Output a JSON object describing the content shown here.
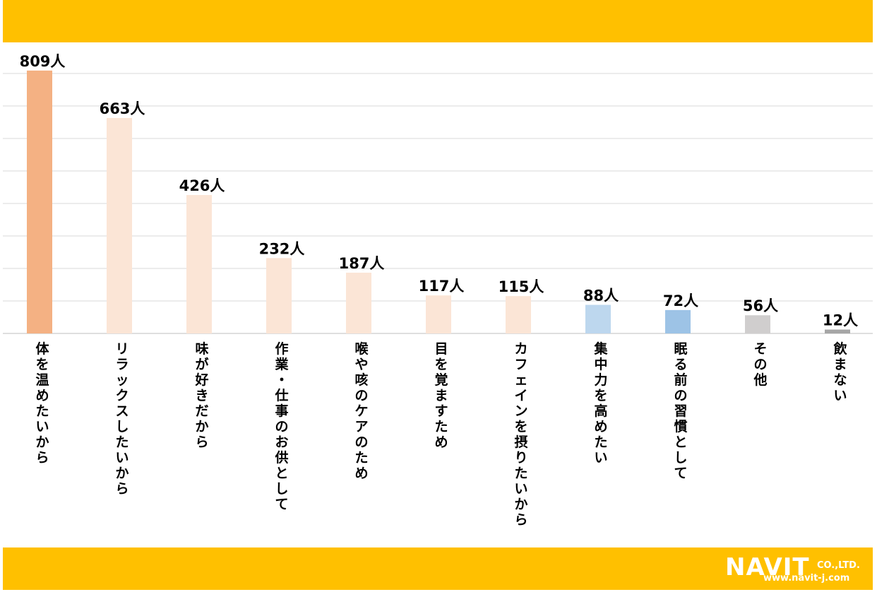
{
  "chart_data": {
    "type": "bar",
    "categories": [
      "体を温めたいから",
      "リラックスしたいから",
      "味が好きだから",
      "作業・仕事のお供として",
      "喉や咳のケアのため",
      "目を覚ますため",
      "カフェインを摂りたいから",
      "集中力を高めたい",
      "眠る前の習慣として",
      "その他",
      "飲まない"
    ],
    "values": [
      809,
      663,
      426,
      232,
      187,
      117,
      115,
      88,
      72,
      56,
      12
    ],
    "value_unit": "人",
    "colors": [
      "#F4B183",
      "#FBE5D6",
      "#FBE5D6",
      "#FBE5D6",
      "#FBE5D6",
      "#FBE5D6",
      "#FBE5D6",
      "#BDD7EE",
      "#9DC3E6",
      "#D0CECE",
      "#A6A6A6"
    ],
    "ylim": [
      0,
      800
    ],
    "grid": true,
    "title": "",
    "xlabel": "",
    "ylabel": ""
  },
  "logo": {
    "brand": "NAVIT",
    "suffix": "CO.,LTD.",
    "url": "www.navit-j.com"
  }
}
